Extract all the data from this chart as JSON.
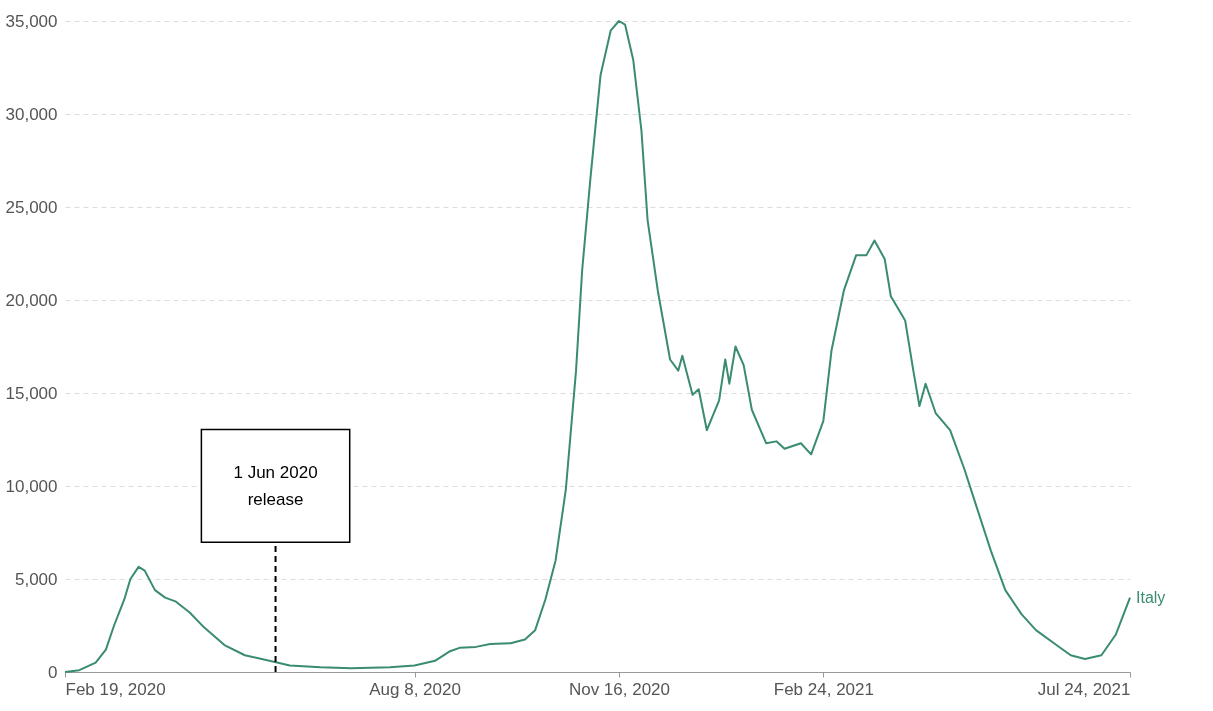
{
  "chart_data": {
    "type": "line",
    "x": [
      "2020-02-19",
      "2020-02-26",
      "2020-03-05",
      "2020-03-10",
      "2020-03-14",
      "2020-03-19",
      "2020-03-22",
      "2020-03-26",
      "2020-03-29",
      "2020-04-03",
      "2020-04-08",
      "2020-04-13",
      "2020-04-20",
      "2020-04-27",
      "2020-05-07",
      "2020-05-17",
      "2020-05-29",
      "2020-06-08",
      "2020-06-23",
      "2020-07-08",
      "2020-07-27",
      "2020-08-08",
      "2020-08-18",
      "2020-08-25",
      "2020-08-30",
      "2020-09-07",
      "2020-09-14",
      "2020-09-24",
      "2020-10-01",
      "2020-10-06",
      "2020-10-11",
      "2020-10-16",
      "2020-10-21",
      "2020-10-26",
      "2020-10-29",
      "2020-11-02",
      "2020-11-07",
      "2020-11-12",
      "2020-11-16",
      "2020-11-19",
      "2020-11-23",
      "2020-11-27",
      "2020-11-30",
      "2020-12-05",
      "2020-12-11",
      "2020-12-15",
      "2020-12-17",
      "2020-12-22",
      "2020-12-25",
      "2020-12-29",
      "2021-01-04",
      "2021-01-07",
      "2021-01-09",
      "2021-01-12",
      "2021-01-16",
      "2021-01-20",
      "2021-01-27",
      "2021-02-01",
      "2021-02-05",
      "2021-02-13",
      "2021-02-18",
      "2021-02-24",
      "2021-02-28",
      "2021-03-06",
      "2021-03-12",
      "2021-03-17",
      "2021-03-21",
      "2021-03-26",
      "2021-03-29",
      "2021-04-05",
      "2021-04-09",
      "2021-04-12",
      "2021-04-15",
      "2021-04-20",
      "2021-04-27",
      "2021-05-04",
      "2021-05-09",
      "2021-05-17",
      "2021-05-24",
      "2021-06-01",
      "2021-06-08",
      "2021-06-18",
      "2021-06-25",
      "2021-07-02",
      "2021-07-10",
      "2021-07-17",
      "2021-07-24"
    ],
    "series": [
      {
        "name": "Italy",
        "color": "#3a8c6e",
        "values": [
          0,
          100,
          500,
          1200,
          2500,
          3900,
          5000,
          5650,
          5450,
          4400,
          4000,
          3800,
          3200,
          2400,
          1450,
          900,
          600,
          350,
          250,
          200,
          250,
          350,
          600,
          1100,
          1300,
          1350,
          1500,
          1550,
          1750,
          2250,
          3900,
          6000,
          9800,
          16200,
          21600,
          26500,
          32100,
          34500,
          35000,
          34800,
          32900,
          29100,
          24300,
          20500,
          16800,
          16200,
          17000,
          14900,
          15200,
          13000,
          14600,
          16800,
          15500,
          17500,
          16500,
          14100,
          12300,
          12400,
          12000,
          12300,
          11700,
          13500,
          17300,
          20500,
          22400,
          22400,
          23200,
          22200,
          20200,
          18900,
          16200,
          14300,
          15500,
          13900,
          13000,
          10900,
          9200,
          6500,
          4400,
          3100,
          2250,
          1450,
          900,
          700,
          900,
          2000,
          4000
        ]
      }
    ],
    "xlim": [
      "2020-02-19",
      "2021-07-24"
    ],
    "xticks": [
      {
        "value": "2020-02-19",
        "label": "Feb 19, 2020"
      },
      {
        "value": "2020-08-08",
        "label": "Aug 8, 2020"
      },
      {
        "value": "2020-11-16",
        "label": "Nov 16, 2020"
      },
      {
        "value": "2021-02-24",
        "label": "Feb 24, 2021"
      },
      {
        "value": "2021-07-24",
        "label": "Jul 24, 2021"
      }
    ],
    "ylim": [
      0,
      35000
    ],
    "yticks": [
      {
        "value": 0,
        "label": "0"
      },
      {
        "value": 5000,
        "label": "5,000"
      },
      {
        "value": 10000,
        "label": "10,000"
      },
      {
        "value": 15000,
        "label": "15,000"
      },
      {
        "value": 20000,
        "label": "20,000"
      },
      {
        "value": 25000,
        "label": "25,000"
      },
      {
        "value": 30000,
        "label": "30,000"
      },
      {
        "value": 35000,
        "label": "35,000"
      }
    ],
    "grid": "y",
    "ref_lines": [
      {
        "axis": "x",
        "value": "2020-06-01",
        "label": "1 Jun 2020\nrelease",
        "color": "#000000",
        "line_style": "dashed"
      }
    ]
  }
}
